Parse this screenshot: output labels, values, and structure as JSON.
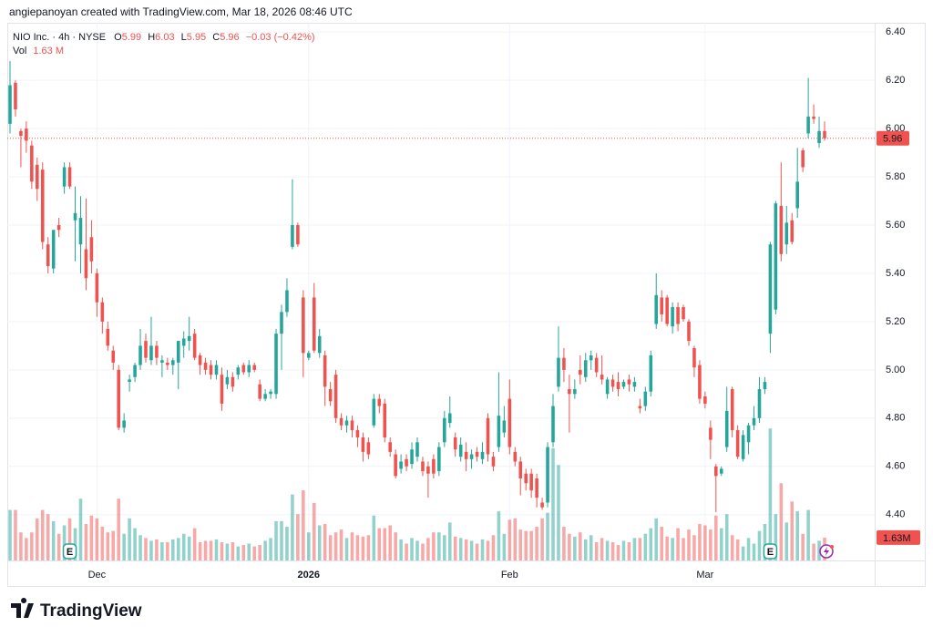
{
  "chart_data": {
    "type": "candlestick",
    "header": "angiepanoyan created with TradingView.com, Mar 18, 2026 08:46 UTC",
    "symbol_label": "NIO Inc. · 4h · NYSE",
    "ohlc_labels": [
      "O",
      "H",
      "L",
      "C"
    ],
    "change_label": "−0.03 (−0.42%)",
    "volume_name": "Vol",
    "volume_legend_label": "1.63 M",
    "volume_axis_label": "1.63M",
    "footer": "TradingView",
    "up_color": "#26a69a",
    "down_color": "#ef5350",
    "grid": true,
    "last_price_line": true,
    "ylim": [
      4.21,
      6.45
    ],
    "yticks": [
      {
        "value": 4.4,
        "label": "4.40"
      },
      {
        "value": 4.6,
        "label": "4.60"
      },
      {
        "value": 4.8,
        "label": "4.80"
      },
      {
        "value": 5.0,
        "label": "5.00"
      },
      {
        "value": 5.2,
        "label": "5.20"
      },
      {
        "value": 5.4,
        "label": "5.40"
      },
      {
        "value": 5.6,
        "label": "5.60"
      },
      {
        "value": 5.8,
        "label": "5.80"
      },
      {
        "value": 6.0,
        "label": "6.00"
      },
      {
        "value": 6.2,
        "label": "6.20"
      },
      {
        "value": 6.4,
        "label": "6.40"
      }
    ],
    "volume_ylim": [
      0,
      38.5
    ],
    "xticks": [
      {
        "value": 16,
        "label": "Dec"
      },
      {
        "value": 55,
        "label": "2026"
      },
      {
        "value": 92,
        "label": "Feb"
      },
      {
        "value": 128,
        "label": "Mar"
      }
    ],
    "events": [
      {
        "index": 11,
        "label": "E"
      },
      {
        "index": 140,
        "label": "E"
      }
    ],
    "open": [
      6.02,
      6.19,
      5.99,
      6.0,
      5.93,
      5.85,
      5.83,
      5.52,
      5.42,
      5.6,
      5.76,
      5.84,
      5.62,
      5.52,
      5.5,
      5.55,
      5.4,
      5.28,
      5.17,
      5.08,
      5.0,
      4.76,
      4.95,
      4.97,
      5.02,
      5.12,
      5.04,
      5.1,
      5.03,
      5.03,
      5.02,
      5.03,
      5.1,
      5.12,
      5.15,
      5.06,
      5.03,
      5.02,
      4.98,
      4.98,
      4.94,
      4.97,
      4.98,
      5.02,
      4.99,
      5.02,
      4.94,
      4.88,
      4.9,
      4.9,
      5.15,
      5.24,
      5.51,
      5.6,
      5.3,
      5.05,
      5.3,
      5.07,
      5.06,
      4.92,
      4.98,
      4.8,
      4.77,
      4.79,
      4.75,
      4.72,
      4.7,
      4.77,
      4.88,
      4.86,
      4.7,
      4.65,
      4.59,
      4.63,
      4.61,
      4.64,
      4.62,
      4.6,
      4.63,
      4.58,
      4.7,
      4.78,
      4.72,
      4.64,
      4.66,
      4.63,
      4.66,
      4.63,
      4.8,
      4.64,
      4.68,
      4.74,
      4.88,
      4.66,
      4.62,
      4.57,
      4.57,
      4.55,
      4.45,
      4.45,
      4.7,
      4.93,
      5.05,
      4.92,
      4.9,
      5.0,
      4.97,
      5.04,
      5.05,
      4.98,
      4.9,
      4.96,
      4.95,
      4.93,
      4.96,
      4.93,
      4.85,
      4.85,
      4.91,
      5.19,
      5.3,
      5.3,
      5.18,
      5.26,
      5.26,
      5.2,
      5.09,
      5.02,
      4.89,
      4.76,
      4.6,
      4.57,
      4.68,
      4.92,
      4.75,
      4.63,
      4.7,
      4.77,
      4.8,
      4.92,
      5.15,
      5.25,
      5.68,
      5.52,
      5.62,
      5.67,
      5.91,
      5.98,
      6.05,
      5.94,
      5.99
    ],
    "high": [
      6.28,
      6.2,
      6.0,
      6.03,
      5.95,
      5.88,
      5.86,
      5.55,
      5.58,
      5.63,
      5.86,
      5.86,
      5.76,
      5.72,
      5.71,
      5.62,
      5.42,
      5.3,
      5.2,
      5.1,
      5.02,
      4.82,
      4.98,
      5.03,
      5.17,
      5.15,
      5.22,
      5.12,
      5.06,
      5.05,
      5.05,
      5.12,
      5.16,
      5.22,
      5.17,
      5.07,
      5.05,
      5.04,
      5.04,
      5.01,
      5.0,
      4.99,
      5.02,
      5.03,
      5.04,
      5.03,
      4.96,
      4.92,
      4.92,
      5.17,
      5.27,
      5.38,
      5.79,
      5.61,
      5.33,
      5.08,
      5.36,
      5.17,
      5.08,
      4.95,
      5.0,
      4.82,
      4.81,
      4.81,
      4.77,
      4.74,
      4.72,
      4.9,
      4.9,
      4.88,
      4.72,
      4.67,
      4.65,
      4.65,
      4.7,
      4.72,
      4.64,
      4.62,
      4.65,
      4.7,
      4.83,
      4.89,
      4.74,
      4.72,
      4.7,
      4.67,
      4.68,
      4.7,
      4.82,
      4.66,
      4.99,
      4.85,
      4.96,
      4.68,
      4.64,
      4.59,
      4.59,
      4.57,
      4.47,
      4.7,
      4.9,
      5.18,
      5.09,
      4.98,
      4.96,
      5.06,
      5.07,
      5.08,
      5.07,
      5.06,
      4.97,
      4.98,
      4.99,
      4.96,
      4.98,
      4.97,
      4.88,
      4.93,
      5.08,
      5.4,
      5.33,
      5.31,
      5.28,
      5.28,
      5.27,
      5.21,
      5.1,
      5.04,
      4.91,
      4.79,
      4.61,
      4.6,
      4.93,
      4.93,
      4.77,
      4.75,
      4.78,
      4.85,
      4.97,
      4.97,
      5.53,
      5.7,
      5.86,
      5.68,
      5.65,
      5.92,
      5.92,
      6.21,
      6.1,
      6.05,
      6.03
    ],
    "low": [
      5.98,
      6.05,
      5.84,
      5.9,
      5.75,
      5.7,
      5.5,
      5.4,
      5.4,
      5.55,
      5.73,
      5.75,
      5.45,
      5.4,
      5.33,
      5.4,
      5.22,
      5.15,
      5.08,
      5.0,
      4.75,
      4.74,
      4.91,
      4.95,
      5.0,
      5.03,
      5.02,
      5.02,
      4.97,
      5.0,
      4.98,
      4.92,
      5.05,
      5.08,
      5.04,
      4.98,
      4.98,
      4.96,
      4.96,
      4.83,
      4.92,
      4.91,
      4.96,
      4.98,
      4.97,
      4.99,
      4.87,
      4.87,
      4.88,
      4.88,
      5.0,
      5.22,
      5.5,
      5.51,
      4.97,
      5.04,
      5.07,
      5.05,
      4.85,
      4.85,
      4.78,
      4.75,
      4.74,
      4.72,
      4.68,
      4.62,
      4.63,
      4.76,
      4.82,
      4.7,
      4.64,
      4.55,
      4.57,
      4.58,
      4.59,
      4.62,
      4.56,
      4.47,
      4.55,
      4.56,
      4.68,
      4.76,
      4.64,
      4.62,
      4.58,
      4.59,
      4.62,
      4.61,
      4.62,
      4.58,
      4.66,
      4.72,
      4.65,
      4.6,
      4.48,
      4.5,
      4.47,
      4.43,
      4.42,
      4.43,
      4.68,
      4.91,
      4.95,
      4.74,
      4.88,
      4.94,
      4.95,
      5.0,
      4.97,
      4.94,
      4.88,
      4.91,
      4.89,
      4.92,
      4.91,
      4.91,
      4.82,
      4.83,
      4.89,
      5.17,
      5.2,
      5.18,
      5.15,
      5.16,
      5.2,
      5.1,
      4.97,
      4.86,
      4.84,
      4.63,
      4.41,
      4.56,
      4.66,
      4.72,
      4.63,
      4.62,
      4.65,
      4.75,
      4.78,
      4.9,
      5.07,
      5.23,
      5.45,
      5.48,
      5.52,
      5.63,
      5.82,
      5.96,
      6.02,
      5.92,
      5.95
    ],
    "close": [
      6.18,
      6.08,
      5.97,
      5.95,
      5.78,
      5.75,
      5.53,
      5.43,
      5.58,
      5.58,
      5.84,
      5.76,
      5.65,
      5.63,
      5.38,
      5.45,
      5.28,
      5.2,
      5.1,
      5.03,
      4.76,
      4.79,
      4.96,
      5.02,
      5.1,
      5.05,
      5.1,
      5.05,
      5.04,
      5.02,
      5.04,
      5.12,
      5.13,
      5.14,
      5.05,
      5.02,
      5.0,
      4.98,
      5.02,
      4.86,
      4.97,
      4.93,
      5.01,
      4.99,
      5.02,
      5.0,
      4.88,
      4.9,
      4.91,
      5.15,
      5.24,
      5.33,
      5.6,
      5.52,
      5.07,
      5.07,
      5.08,
      5.14,
      4.93,
      4.87,
      4.8,
      4.77,
      4.79,
      4.75,
      4.72,
      4.66,
      4.65,
      4.88,
      4.85,
      4.72,
      4.66,
      4.56,
      4.62,
      4.6,
      4.67,
      4.7,
      4.58,
      4.57,
      4.57,
      4.68,
      4.8,
      4.82,
      4.67,
      4.69,
      4.63,
      4.65,
      4.64,
      4.66,
      4.65,
      4.6,
      4.81,
      4.79,
      4.68,
      4.62,
      4.55,
      4.53,
      4.5,
      4.47,
      4.43,
      4.68,
      4.85,
      5.05,
      5.0,
      4.9,
      4.92,
      4.98,
      5.04,
      5.06,
      4.99,
      4.96,
      4.96,
      4.93,
      4.92,
      4.95,
      4.94,
      4.95,
      4.84,
      4.91,
      5.06,
      5.31,
      5.23,
      5.19,
      5.26,
      5.19,
      5.21,
      5.12,
      5.01,
      4.88,
      4.86,
      4.71,
      4.56,
      4.59,
      4.83,
      4.75,
      4.64,
      4.73,
      4.77,
      4.8,
      4.92,
      4.95,
      5.52,
      5.69,
      5.48,
      5.61,
      5.53,
      5.78,
      5.84,
      6.05,
      6.04,
      5.99,
      5.96
    ],
    "volume": [
      3.6,
      3.6,
      2.0,
      1.6,
      2.0,
      3.0,
      3.6,
      3.3,
      2.8,
      1.9,
      2.5,
      3.0,
      2.3,
      4.4,
      2.6,
      3.2,
      3.0,
      2.4,
      2.0,
      2.1,
      4.4,
      1.9,
      3.0,
      2.3,
      1.8,
      1.6,
      1.4,
      1.5,
      1.3,
      1.3,
      1.5,
      1.6,
      1.9,
      1.7,
      2.3,
      1.3,
      1.4,
      1.4,
      1.5,
      1.3,
      1.2,
      1.3,
      1.0,
      1.1,
      1.2,
      1.0,
      1.1,
      1.4,
      1.6,
      2.8,
      2.8,
      2.4,
      4.7,
      3.3,
      5.0,
      2.0,
      4.1,
      2.5,
      2.6,
      1.8,
      2.0,
      2.2,
      1.6,
      2.0,
      1.8,
      1.7,
      1.8,
      3.2,
      2.3,
      2.3,
      2.5,
      2.0,
      1.5,
      1.2,
      1.6,
      1.4,
      1.2,
      1.6,
      2.0,
      2.0,
      1.8,
      2.7,
      1.7,
      1.6,
      1.5,
      1.4,
      1.2,
      1.5,
      1.4,
      1.8,
      3.5,
      1.9,
      2.9,
      3.0,
      2.2,
      2.1,
      2.1,
      2.4,
      3.0,
      3.4,
      8.0,
      6.8,
      2.4,
      1.9,
      1.7,
      2.0,
      1.5,
      1.8,
      1.3,
      1.6,
      1.4,
      1.3,
      1.1,
      1.4,
      1.3,
      1.6,
      1.6,
      1.9,
      2.3,
      3.0,
      2.4,
      1.7,
      1.6,
      2.3,
      1.6,
      2.2,
      1.8,
      2.6,
      2.5,
      2.2,
      3.2,
      2.3,
      3.3,
      1.8,
      1.5,
      1.0,
      1.6,
      1.2,
      2.1,
      2.6,
      9.4,
      3.3,
      5.5,
      2.7,
      4.2,
      3.5,
      1.9,
      3.6,
      1.2,
      1.4,
      1.63
    ]
  }
}
